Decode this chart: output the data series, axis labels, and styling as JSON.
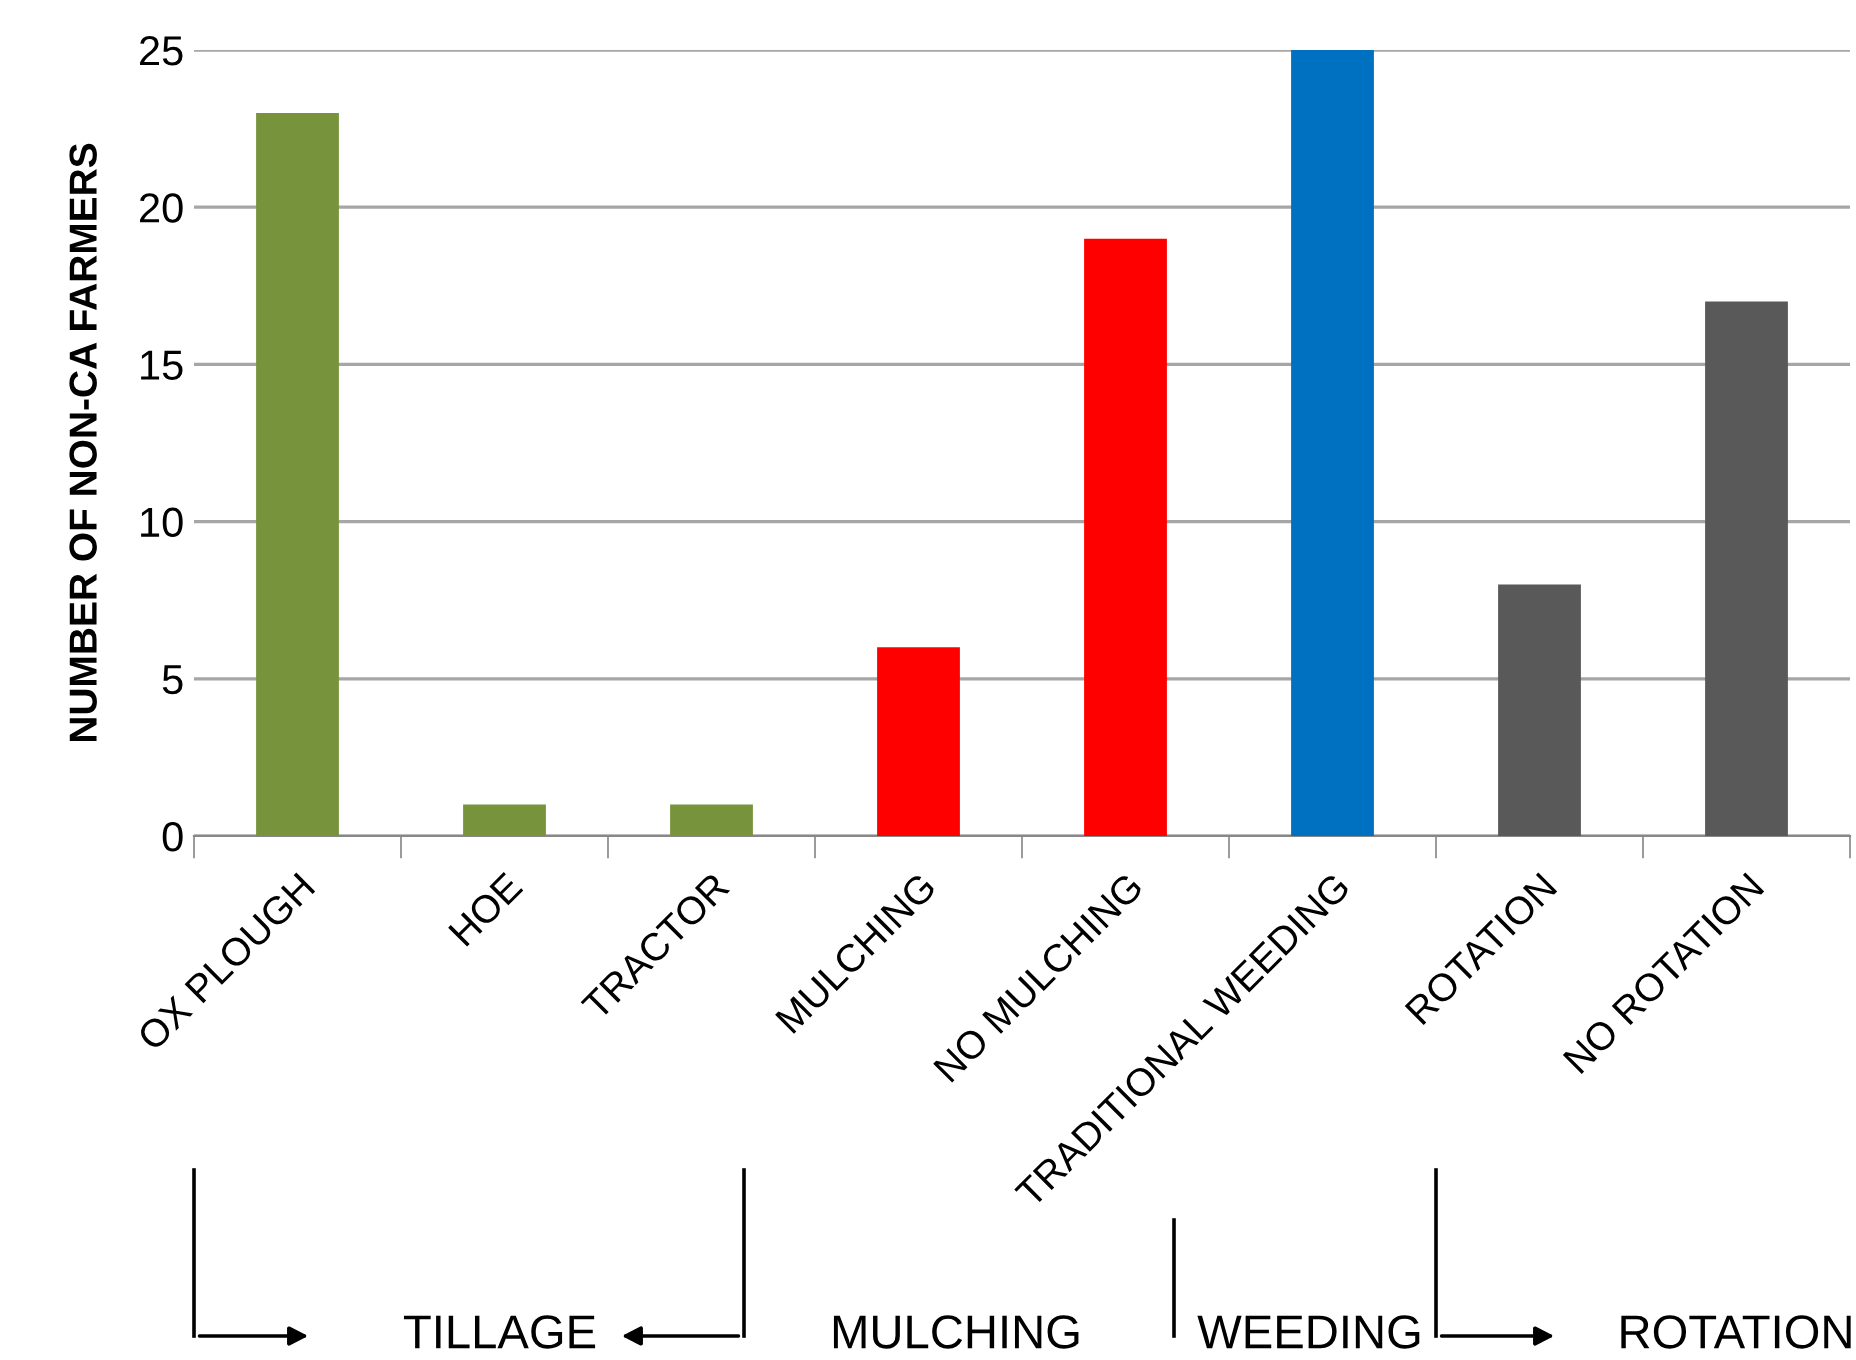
{
  "chart_data": {
    "type": "bar",
    "ylabel": "NUMBER OF NON-CA FARMERS",
    "categories": [
      "OX PLOUGH",
      "HOE",
      "TRACTOR",
      "MULCHING",
      "NO MULCHING",
      "TRADITIONAL WEEDING",
      "ROTATION",
      "NO ROTATION"
    ],
    "values": [
      23,
      1,
      1,
      6,
      19,
      25,
      8,
      17
    ],
    "colors": [
      "#77933c",
      "#77933c",
      "#77933c",
      "#ff0000",
      "#ff0000",
      "#0070c0",
      "#595959",
      "#595959"
    ],
    "ylim": [
      0,
      25
    ],
    "yticks": [
      0,
      5,
      10,
      15,
      20,
      25
    ],
    "grid": "y",
    "annotations": [
      "TILLAGE",
      "MULCHING",
      "WEEDING",
      "ROTATION"
    ]
  }
}
